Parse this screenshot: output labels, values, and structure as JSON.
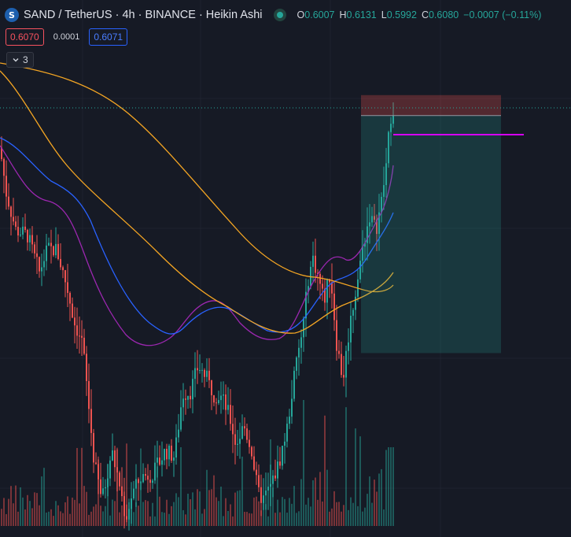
{
  "header": {
    "symbol_icon": "S",
    "title": "SAND / TetherUS · 4h · BINANCE · Heikin Ashi",
    "live_icon": "live-status-dot-icon",
    "ohlc": [
      {
        "label": "O",
        "value": "0.6007"
      },
      {
        "label": "H",
        "value": "0.6131"
      },
      {
        "label": "L",
        "value": "0.5992"
      },
      {
        "label": "C",
        "value": "0.6080"
      },
      {
        "label": "",
        "value": "−0.0007 (−0.11%)"
      }
    ]
  },
  "trade": {
    "sell_price": "0.6070",
    "spread": "0.0001",
    "buy_price": "0.6071"
  },
  "indicators": {
    "toggle_icon": "chevron-down-icon",
    "count": "3"
  },
  "colors": {
    "background": "#161a25",
    "up": "#26a69a",
    "down": "#ef5350",
    "ma_purple": "#9c27b0",
    "ma_blue": "#2962ff",
    "ma_orange": "#f5a623",
    "position_target": "#26a69a",
    "position_stop": "#ef5350",
    "target_line": "#d500f9"
  },
  "chart_data": {
    "type": "candlestick",
    "style": "Heikin Ashi",
    "grid": true,
    "last_price": 0.608,
    "series": [
      {
        "name": "",
        "kind": "moving-average",
        "color": "purple"
      },
      {
        "name": "",
        "kind": "moving-average",
        "color": "blue"
      },
      {
        "name": "",
        "kind": "moving-average",
        "color": "orange"
      },
      {
        "name": "",
        "kind": "moving-average",
        "color": "orange"
      }
    ],
    "volume": true,
    "position_tool": {
      "type": "long",
      "entry_price": 0.6053,
      "stop_price": 0.6125,
      "target_price": 0.5215
    }
  }
}
